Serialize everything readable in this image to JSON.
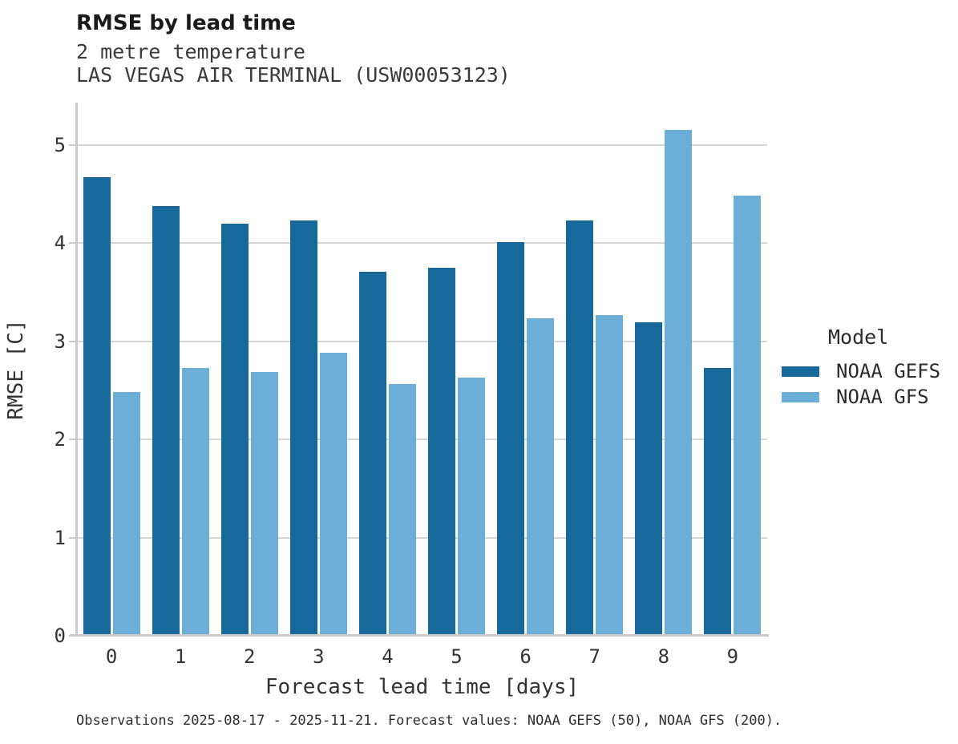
{
  "chart_data": {
    "type": "bar",
    "title": "RMSE by lead time",
    "subtitle": [
      "2 metre temperature",
      "LAS VEGAS AIR TERMINAL (USW00053123)"
    ],
    "xlabel": "Forecast lead time [days]",
    "ylabel": "RMSE [C]",
    "categories": [
      "0",
      "1",
      "2",
      "3",
      "4",
      "5",
      "6",
      "7",
      "8",
      "9"
    ],
    "series": [
      {
        "name": "NOAA GEFS",
        "color": "#17699c",
        "values": [
          4.67,
          4.38,
          4.2,
          4.23,
          3.71,
          3.75,
          4.01,
          4.23,
          3.19,
          2.73
        ]
      },
      {
        "name": "NOAA GFS",
        "color": "#6bafd8",
        "values": [
          2.48,
          2.73,
          2.69,
          2.88,
          2.56,
          2.63,
          3.23,
          3.27,
          5.15,
          4.48
        ]
      }
    ],
    "ylim": [
      0,
      5.43
    ],
    "yticks": [
      0,
      1,
      2,
      3,
      4,
      5
    ],
    "grid": "horizontal",
    "legend_title": "Model",
    "legend_position": "right",
    "caption": "Observations 2025-08-17 - 2025-11-21. Forecast values: NOAA GEFS (50), NOAA GFS (200)."
  }
}
